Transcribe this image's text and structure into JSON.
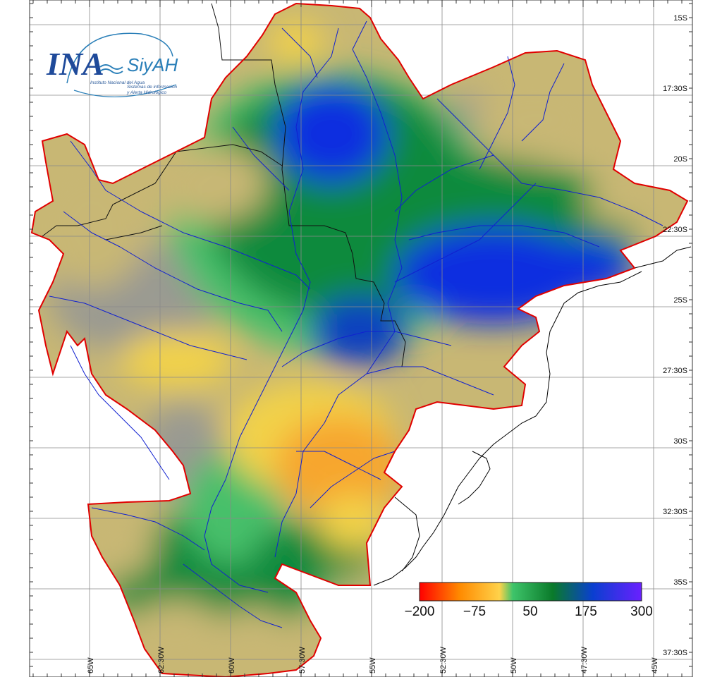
{
  "logo": {
    "brand": "INA",
    "product": "SiyAH",
    "subtitle": "Instituto Nacional del Agua",
    "tagline_1": "Sistemas de información",
    "tagline_2": "y Alerta Hidrológico"
  },
  "lat_labels": [
    "15S",
    "17:30S",
    "20S",
    "22:30S",
    "25S",
    "27:30S",
    "30S",
    "32:30S",
    "35S",
    "37:30S"
  ],
  "lon_labels": [
    "65W",
    "62:30W",
    "60W",
    "57:30W",
    "55W",
    "52:30W",
    "50W",
    "47:30W",
    "45W"
  ],
  "colorbar": {
    "ticks": [
      "−200",
      "−75",
      "50",
      "175",
      "300"
    ],
    "colors": [
      "#ff0000",
      "#ff8a00",
      "#ffd24a",
      "#3ec46a",
      "#0a7a2a",
      "#0a3fd0",
      "#6a20ff"
    ]
  },
  "map_colors": {
    "boundary": "#e00000",
    "rivers": "#1020d0",
    "coast": "#000000",
    "grid": "#8a8a8a",
    "khaki": "#c8b774",
    "gray": "#9a9a92",
    "green_light": "#46c06a",
    "green": "#0f8a3c",
    "blue": "#0b2ee0",
    "yellow": "#f2d24a",
    "orange": "#f7a62e"
  }
}
